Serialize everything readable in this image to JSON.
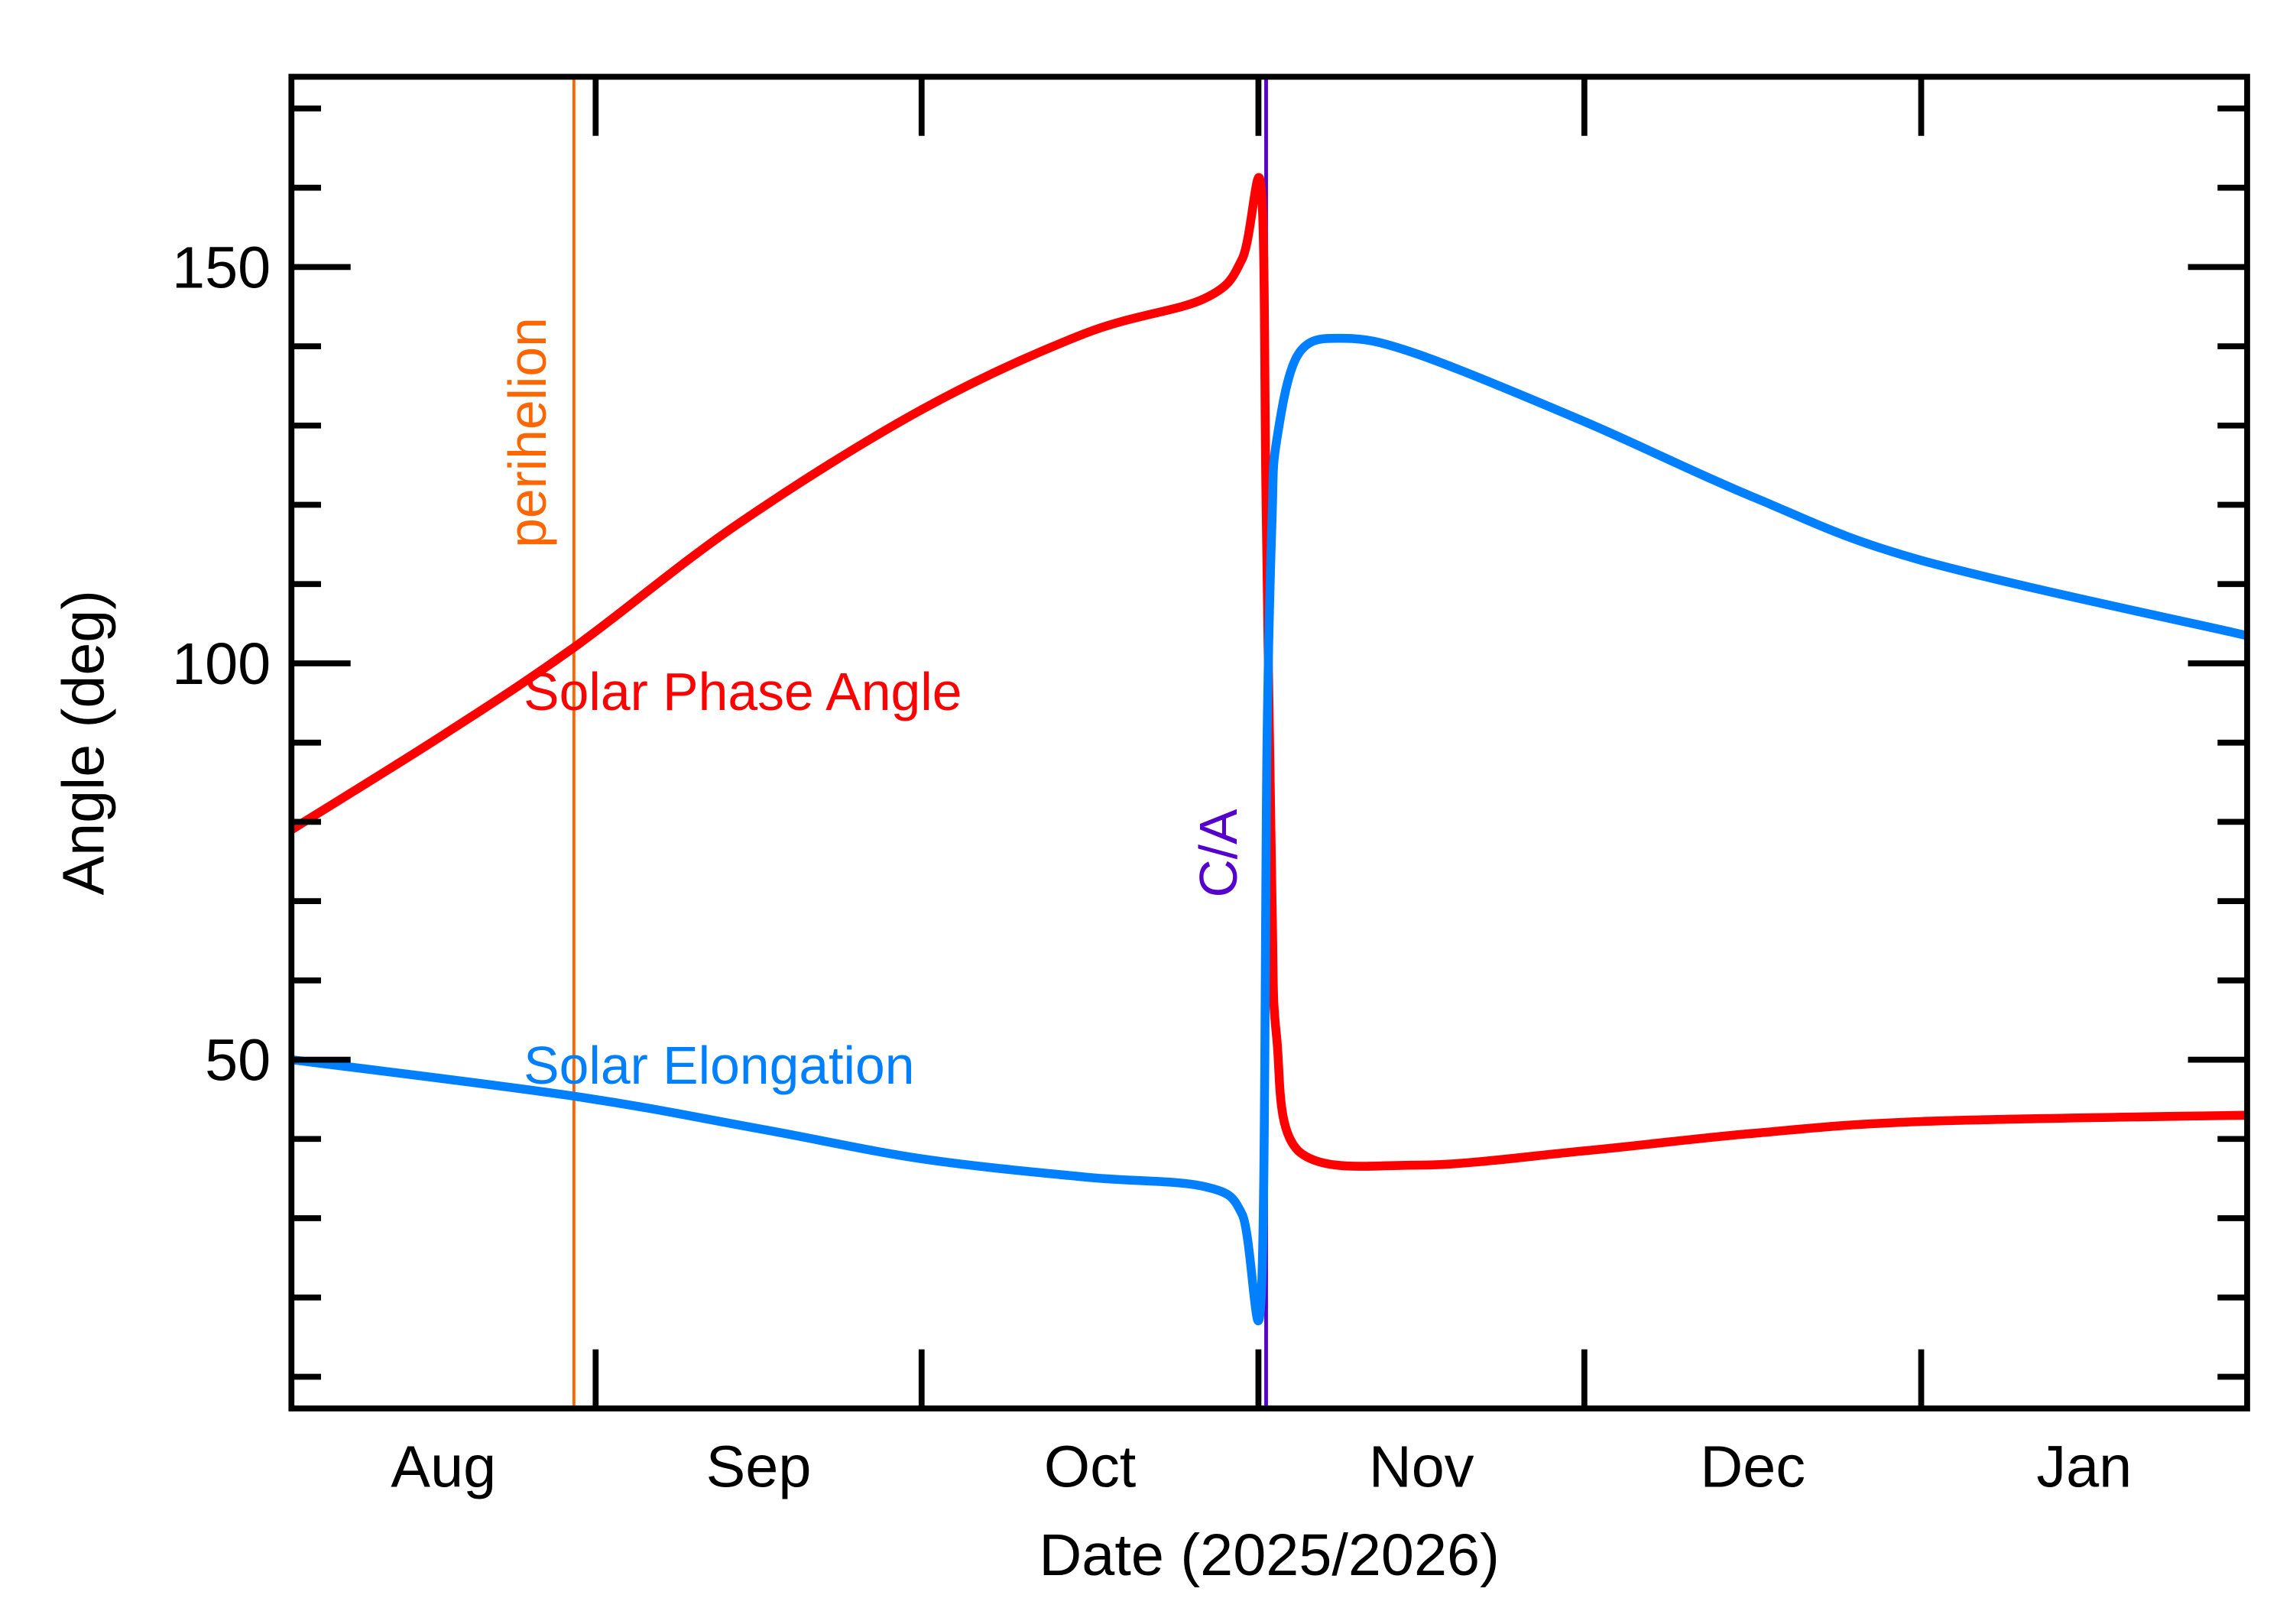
{
  "chart_data": {
    "type": "line",
    "title": "",
    "xlabel": "Date (2025/2026)",
    "ylabel": "Angle (deg)",
    "xlim": [
      "2025-08-04",
      "2026-01-31"
    ],
    "ylim": [
      6,
      174
    ],
    "y_major_ticks": [
      50,
      100,
      150
    ],
    "y_minor_step": 10,
    "x_tick_dates": [
      "2025-09-01",
      "2025-10-01",
      "2025-11-01",
      "2025-12-01",
      "2026-01-01"
    ],
    "x_month_labels": [
      {
        "label": "Aug",
        "start": "2025-08-04",
        "end": "2025-09-01"
      },
      {
        "label": "Sep",
        "start": "2025-09-01",
        "end": "2025-10-01"
      },
      {
        "label": "Oct",
        "start": "2025-10-01",
        "end": "2025-11-01"
      },
      {
        "label": "Nov",
        "start": "2025-11-01",
        "end": "2025-12-01"
      },
      {
        "label": "Dec",
        "start": "2025-12-01",
        "end": "2026-01-01"
      },
      {
        "label": "Jan",
        "start": "2026-01-01",
        "end": "2026-01-31"
      }
    ],
    "grid": false,
    "legend": "none (inline labels)",
    "series": [
      {
        "name": "Solar Phase Angle",
        "color": "#ff0000",
        "x": [
          "2025-08-04",
          "2025-08-18",
          "2025-08-30",
          "2025-09-14",
          "2025-10-01",
          "2025-10-16",
          "2025-10-27",
          "2025-10-30T12:00",
          "2025-11-01T06:00",
          "2025-11-01T17:00",
          "2025-11-02T06:00",
          "2025-11-02T16:00",
          "2025-11-04T16:00",
          "2025-11-15T16:00",
          "2025-12-01",
          "2025-12-16T12:00",
          "2026-01-01",
          "2026-01-31"
        ],
        "y": [
          79,
          91,
          102,
          117.5,
          132,
          141.6,
          146,
          151,
          160,
          120,
          70,
          53,
          38.5,
          36.7,
          38.5,
          40.7,
          42.2,
          43
        ]
      },
      {
        "name": "Solar Elongation",
        "color": "#0080ff",
        "x": [
          "2025-08-04",
          "2025-08-30",
          "2025-09-16",
          "2025-10-01",
          "2025-10-16",
          "2025-10-27",
          "2025-10-30T12:00",
          "2025-11-01T06:00",
          "2025-11-01T19:00",
          "2025-11-02T06:00",
          "2025-11-02T16:00",
          "2025-11-04T16:00",
          "2025-11-08T19:00",
          "2025-11-15T16:00",
          "2025-12-01",
          "2025-12-16T12:00",
          "2026-01-01",
          "2026-01-31"
        ],
        "y": [
          50,
          45.4,
          41.3,
          37.5,
          35.2,
          34,
          30.5,
          20,
          90,
          118,
          128,
          139,
          141,
          139,
          130.5,
          121,
          113,
          103.5
        ]
      }
    ],
    "annotations": [
      {
        "label": "perihelion",
        "date": "2025-08-30",
        "color": "#ff6600"
      },
      {
        "label": "C/A",
        "date": "2025-11-01T17:00",
        "color": "#5500cc"
      }
    ]
  }
}
